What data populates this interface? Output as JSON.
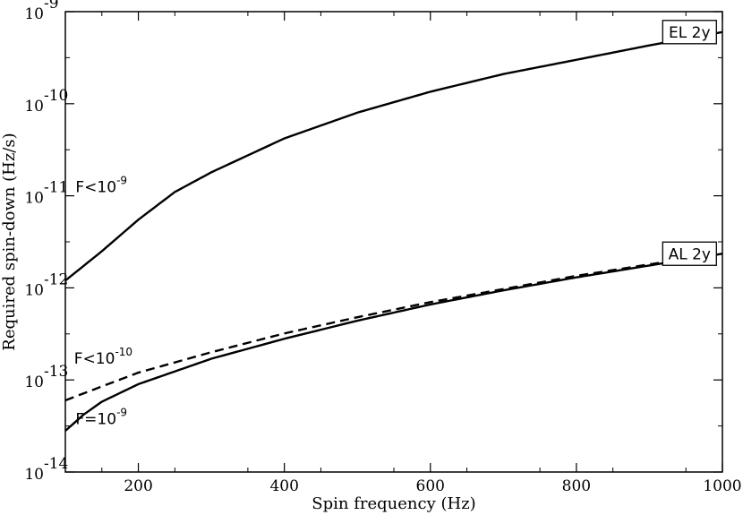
{
  "chart_data": {
    "type": "line",
    "xlabel": "Spin frequency (Hz)",
    "ylabel": "Required spin-down (Hz/s)",
    "xlim": [
      100,
      1000
    ],
    "ylim": [
      1e-14,
      1e-09
    ],
    "yscale": "log",
    "x_ticks": [
      {
        "value": 200,
        "label": "200"
      },
      {
        "value": 400,
        "label": "400"
      },
      {
        "value": 600,
        "label": "600"
      },
      {
        "value": 800,
        "label": "800"
      },
      {
        "value": 1000,
        "label": "1000"
      }
    ],
    "y_ticks": [
      {
        "value": 1e-14,
        "base": "10",
        "exp": "-14"
      },
      {
        "value": 1e-13,
        "base": "10",
        "exp": "-13"
      },
      {
        "value": 1e-12,
        "base": "10",
        "exp": "-12"
      },
      {
        "value": 1e-11,
        "base": "10",
        "exp": "-11"
      },
      {
        "value": 1e-10,
        "base": "10",
        "exp": "-10"
      },
      {
        "value": 1e-09,
        "base": "10",
        "exp": "-9"
      }
    ],
    "grid": false,
    "series": [
      {
        "id": "el-2y-f-lt-1e-9",
        "style": "solid",
        "color": "#000000",
        "x": [
          100,
          150,
          200,
          250,
          300,
          400,
          500,
          600,
          700,
          800,
          900,
          1000
        ],
        "y": [
          1.2e-12,
          2.5e-12,
          5.5e-12,
          1.1e-11,
          1.8e-11,
          4.2e-11,
          8e-11,
          1.35e-10,
          2.1e-10,
          3e-10,
          4.3e-10,
          6e-10
        ]
      },
      {
        "id": "al-2y-f-lt-1e-10",
        "style": "dashed",
        "color": "#000000",
        "x": [
          100,
          150,
          200,
          300,
          400,
          500,
          600,
          700,
          800,
          900,
          1000
        ],
        "y": [
          6e-14,
          8.5e-14,
          1.2e-13,
          2e-13,
          3.2e-13,
          4.8e-13,
          7e-13,
          9.7e-13,
          1.35e-12,
          1.8e-12,
          2.35e-12
        ]
      },
      {
        "id": "al-2y-f-eq-1e-9",
        "style": "solid",
        "color": "#000000",
        "x": [
          100,
          125,
          150,
          200,
          300,
          400,
          500,
          600,
          700,
          800,
          900,
          1000
        ],
        "y": [
          2.8e-14,
          4.2e-14,
          5.8e-14,
          9e-14,
          1.7e-13,
          2.8e-13,
          4.4e-13,
          6.6e-13,
          9.4e-13,
          1.3e-12,
          1.75e-12,
          2.35e-12
        ]
      }
    ],
    "annotations": [
      {
        "id": "el-curve-label",
        "base": "F<10",
        "exp": "-9",
        "x": 114,
        "y": 1.1e-11
      },
      {
        "id": "al-dashed-label",
        "base": "F<10",
        "exp": "-10",
        "x": 112,
        "y": 1.5e-13
      },
      {
        "id": "al-solid-label",
        "base": "F=10",
        "exp": "-9",
        "x": 114,
        "y": 3.3e-14
      }
    ],
    "box_labels": [
      {
        "id": "el-2y",
        "text": "EL 2y",
        "x": 955,
        "y": 6e-10
      },
      {
        "id": "al-2y",
        "text": "AL 2y",
        "x": 955,
        "y": 2.35e-12
      }
    ]
  }
}
